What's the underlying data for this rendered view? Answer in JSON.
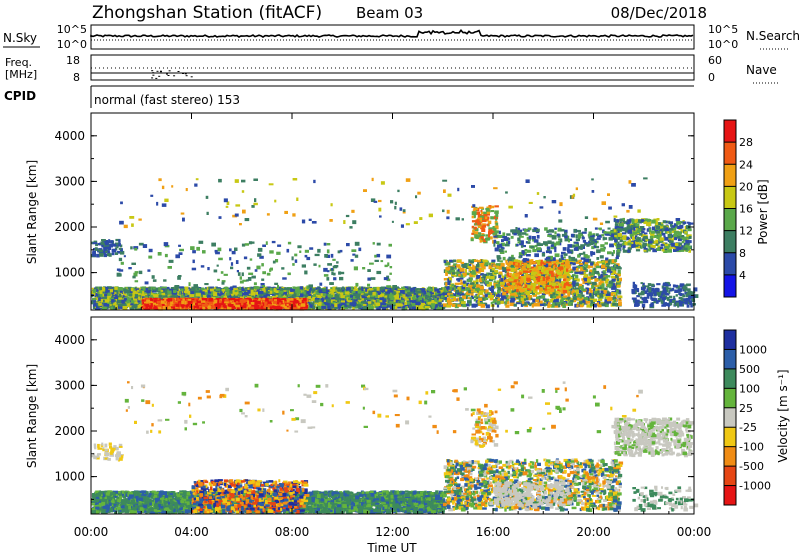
{
  "header": {
    "station": "Zhongshan Station (fitACF)",
    "beam": "Beam 03",
    "date": "08/Dec/2018"
  },
  "top_panel": {
    "left_label": "N.Sky",
    "right_label": "N.Search",
    "left_ticks": [
      "10^5",
      "10^0"
    ],
    "right_ticks": [
      "10^5",
      "10^0"
    ]
  },
  "freq_panel": {
    "left_label_1": "Freq.",
    "left_label_2": "[MHz]",
    "right_label": "Nave",
    "left_ticks": [
      "18",
      "8"
    ],
    "right_ticks": [
      "60",
      "0"
    ]
  },
  "cpid_panel": {
    "label": "CPID",
    "text": "normal (fast stereo) 153"
  },
  "power_panel": {
    "ylabel": "Slant Range [km]",
    "yticks": [
      "1000",
      "2000",
      "3000",
      "4000"
    ],
    "colorbar_label": "Power [dB]",
    "colorbar_ticks": [
      "4",
      "8",
      "12",
      "16",
      "20",
      "24",
      "28"
    ],
    "colors": [
      "#1414e6",
      "#2c4aa8",
      "#3d7e62",
      "#5aa84a",
      "#c8c814",
      "#f0a014",
      "#f05a14",
      "#e61414"
    ]
  },
  "velocity_panel": {
    "ylabel": "Slant Range [km]",
    "yticks": [
      "1000",
      "2000",
      "3000",
      "4000"
    ],
    "colorbar_label": "Velocity [m s⁻¹]",
    "colorbar_ticks": [
      "1000",
      "500",
      "100",
      "25",
      "-25",
      "-100",
      "-500",
      "-1000"
    ],
    "colors": [
      "#1e2fa0",
      "#2c5ea8",
      "#3d8a5c",
      "#64b43c",
      "#c8c8c0",
      "#f0c814",
      "#f08c14",
      "#e64614",
      "#e61414"
    ]
  },
  "xaxis": {
    "label": "Time UT",
    "ticks": [
      "00:00",
      "04:00",
      "08:00",
      "12:00",
      "16:00",
      "20:00",
      "00:00"
    ]
  },
  "chart_data": [
    {
      "type": "heatmap",
      "title": "Power",
      "xlabel": "Time UT",
      "ylabel": "Slant Range [km]",
      "x_range_hours": [
        0,
        24
      ],
      "ylim": [
        180,
        4500
      ],
      "colorbar": {
        "label": "Power [dB]",
        "range": [
          0,
          32
        ],
        "ticks": [
          4,
          8,
          12,
          16,
          20,
          24,
          28
        ]
      },
      "features": [
        {
          "t_start": 0,
          "t_end": 14,
          "range_km": [
            300,
            800
          ],
          "value_db": 14
        },
        {
          "t_start": 2,
          "t_end": 8,
          "range_km": [
            300,
            500
          ],
          "value_db": 26
        },
        {
          "t_start": 14,
          "t_end": 21,
          "range_km": [
            600,
            1400
          ],
          "value_db": 12
        },
        {
          "t_start": 15,
          "t_end": 16,
          "range_km": [
            1800,
            2500
          ],
          "value_db": 20
        },
        {
          "t_start": 21,
          "t_end": 24,
          "range_km": [
            1600,
            2200
          ],
          "value_db": 10
        }
      ]
    },
    {
      "type": "heatmap",
      "title": "Velocity",
      "xlabel": "Time UT",
      "ylabel": "Slant Range [km]",
      "x_range_hours": [
        0,
        24
      ],
      "ylim": [
        180,
        4500
      ],
      "colorbar": {
        "label": "Velocity [m s-1]",
        "ticks": [
          1000,
          500,
          100,
          25,
          -25,
          -100,
          -500,
          -1000
        ]
      },
      "features": [
        {
          "t_start": 0,
          "t_end": 14,
          "range_km": [
            300,
            700
          ],
          "value_ms": 100
        },
        {
          "t_start": 4,
          "t_end": 8,
          "range_km": [
            300,
            900
          ],
          "value_ms": -300
        },
        {
          "t_start": 14,
          "t_end": 21,
          "range_km": [
            500,
            1400
          ],
          "value_ms": 200
        },
        {
          "t_start": 21,
          "t_end": 24,
          "range_km": [
            1600,
            2300
          ],
          "value_ms": 0
        }
      ]
    }
  ]
}
